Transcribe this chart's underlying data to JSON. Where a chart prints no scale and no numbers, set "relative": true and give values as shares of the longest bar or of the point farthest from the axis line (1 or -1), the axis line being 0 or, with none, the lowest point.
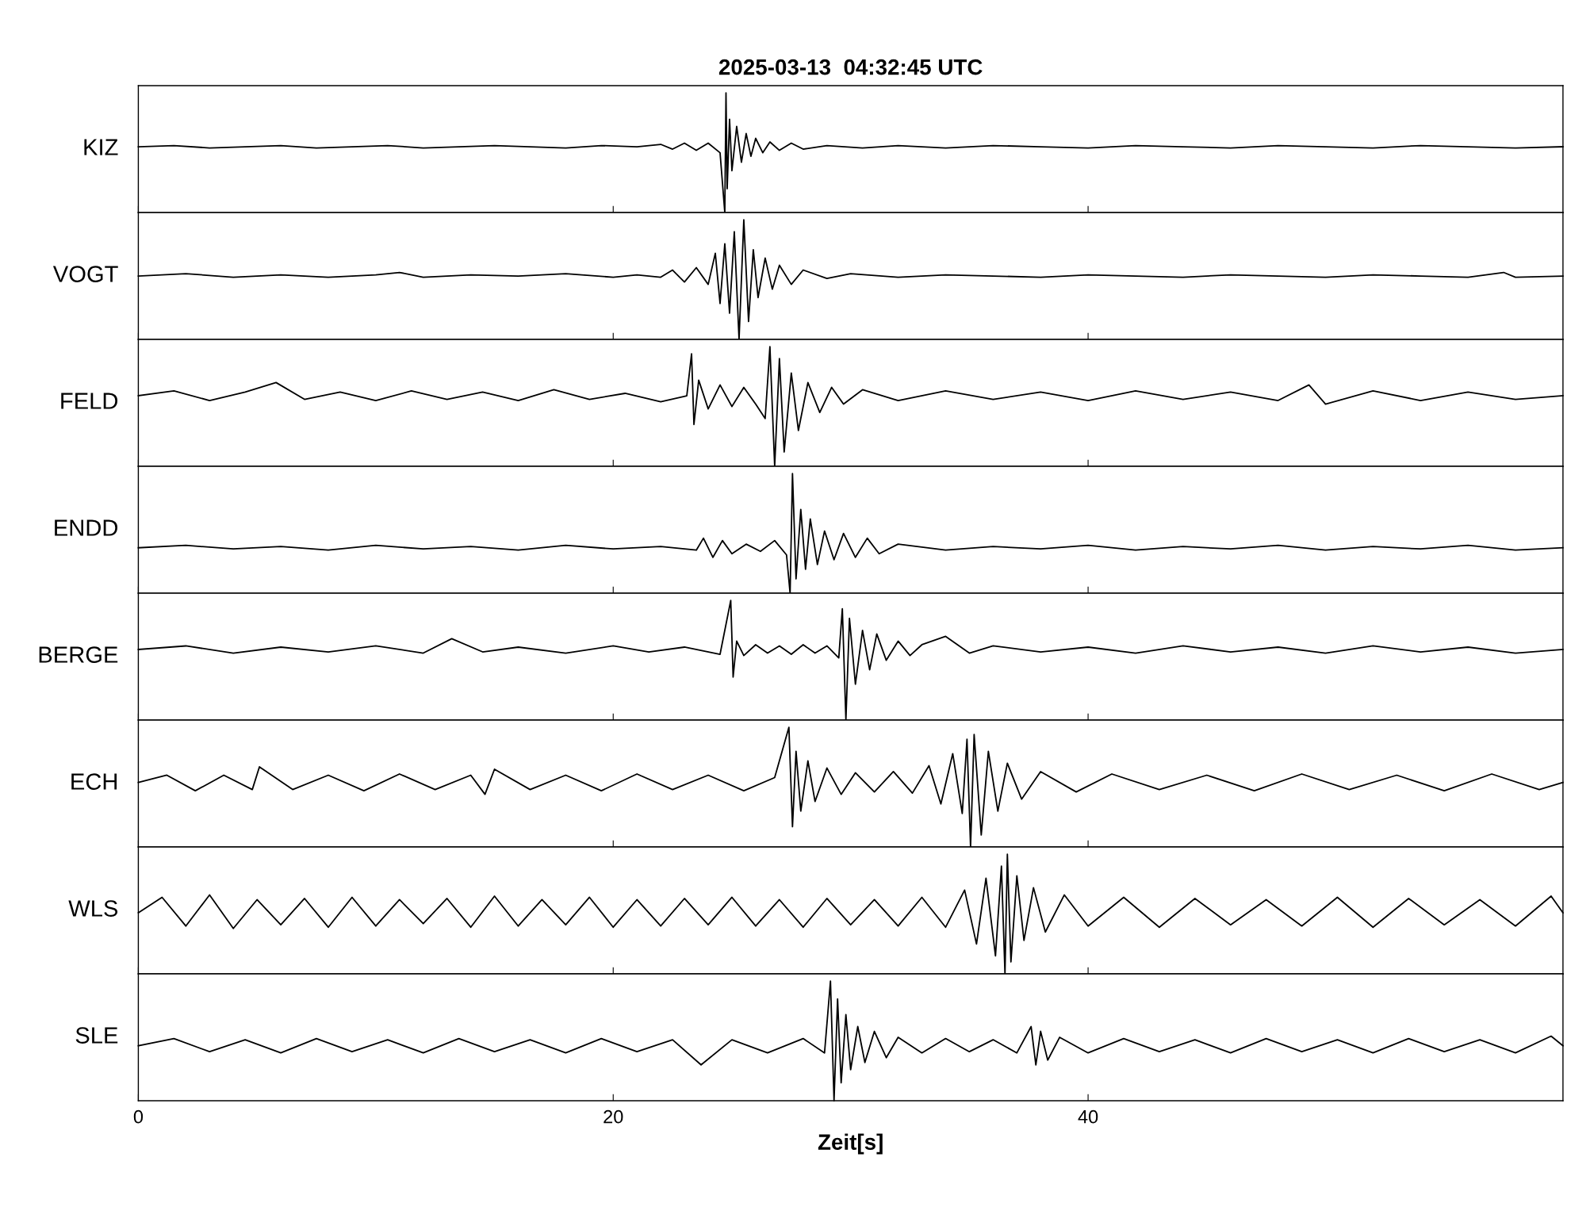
{
  "chart_data": [
    {
      "type": "line",
      "relative": true,
      "title": "2025-03-13  04:32:45 UTC",
      "ylabel": "KIZ",
      "xlim": [
        0,
        60
      ],
      "xticks": [
        0,
        20,
        40
      ],
      "tick_labels": false,
      "x": [
        0,
        1.5,
        3,
        4.5,
        6,
        7.5,
        9,
        10.5,
        12,
        13.5,
        15,
        16.5,
        18,
        19.5,
        21,
        22,
        22.5,
        23,
        23.5,
        24,
        24.5,
        24.7,
        24.75,
        24.8,
        24.9,
        25.0,
        25.2,
        25.4,
        25.6,
        25.8,
        26.0,
        26.3,
        26.6,
        27,
        27.5,
        28,
        29,
        30.5,
        32,
        34,
        36,
        38,
        40,
        42,
        44,
        46,
        48,
        50,
        52,
        54,
        56,
        58,
        60
      ],
      "series": [
        {
          "color": "#000000",
          "values": [
            0.55,
            0.56,
            0.54,
            0.55,
            0.56,
            0.54,
            0.55,
            0.56,
            0.54,
            0.55,
            0.56,
            0.55,
            0.54,
            0.56,
            0.55,
            0.57,
            0.53,
            0.58,
            0.52,
            0.58,
            0.5,
            0.0,
            1.0,
            0.2,
            0.78,
            0.35,
            0.72,
            0.42,
            0.66,
            0.47,
            0.62,
            0.5,
            0.59,
            0.52,
            0.58,
            0.53,
            0.56,
            0.54,
            0.56,
            0.54,
            0.56,
            0.55,
            0.54,
            0.56,
            0.55,
            0.54,
            0.56,
            0.55,
            0.54,
            0.56,
            0.55,
            0.54,
            0.55
          ]
        }
      ]
    },
    {
      "type": "line",
      "relative": true,
      "ylabel": "VOGT",
      "xlim": [
        0,
        60
      ],
      "xticks": [
        0,
        20,
        40
      ],
      "tick_labels": false,
      "x": [
        0,
        2,
        4,
        6,
        8,
        10,
        11,
        12,
        14,
        16,
        18,
        20,
        21,
        22,
        22.5,
        23,
        23.5,
        24,
        24.3,
        24.5,
        24.7,
        24.9,
        25.1,
        25.3,
        25.5,
        25.7,
        25.9,
        26.1,
        26.4,
        26.7,
        27,
        27.5,
        28,
        29,
        30,
        32,
        34,
        36,
        38,
        40,
        42,
        44,
        46,
        48,
        50,
        52,
        54,
        56,
        57.5,
        58,
        60
      ],
      "series": [
        {
          "color": "#000000",
          "values": [
            0.53,
            0.55,
            0.52,
            0.54,
            0.52,
            0.54,
            0.56,
            0.52,
            0.54,
            0.53,
            0.55,
            0.52,
            0.54,
            0.52,
            0.58,
            0.48,
            0.6,
            0.46,
            0.72,
            0.3,
            0.8,
            0.22,
            0.9,
            0.0,
            1.0,
            0.15,
            0.75,
            0.35,
            0.68,
            0.42,
            0.62,
            0.46,
            0.58,
            0.51,
            0.55,
            0.52,
            0.54,
            0.53,
            0.52,
            0.54,
            0.53,
            0.52,
            0.54,
            0.53,
            0.52,
            0.54,
            0.53,
            0.52,
            0.56,
            0.52,
            0.53
          ]
        }
      ]
    },
    {
      "type": "line",
      "relative": true,
      "ylabel": "FELD",
      "xlim": [
        0,
        60
      ],
      "xticks": [
        0,
        20,
        40
      ],
      "tick_labels": false,
      "x": [
        0,
        1.5,
        3,
        4.5,
        5.8,
        7,
        8.5,
        10,
        11.5,
        13,
        14.5,
        16,
        17.5,
        19,
        20.5,
        22,
        23.1,
        23.3,
        23.4,
        23.6,
        24,
        24.5,
        25,
        25.5,
        26,
        26.4,
        26.6,
        26.8,
        27,
        27.2,
        27.5,
        27.8,
        28.2,
        28.7,
        29.2,
        29.7,
        30.5,
        32,
        34,
        36,
        38,
        40,
        42,
        44,
        46,
        48,
        49.3,
        50,
        52,
        54,
        56,
        58,
        60
      ],
      "series": [
        {
          "color": "#000000",
          "values": [
            0.59,
            0.63,
            0.55,
            0.62,
            0.7,
            0.56,
            0.62,
            0.55,
            0.63,
            0.56,
            0.62,
            0.55,
            0.64,
            0.56,
            0.61,
            0.54,
            0.59,
            0.94,
            0.35,
            0.72,
            0.48,
            0.68,
            0.5,
            0.66,
            0.52,
            0.4,
            1.0,
            0.0,
            0.9,
            0.12,
            0.78,
            0.3,
            0.7,
            0.45,
            0.66,
            0.52,
            0.64,
            0.55,
            0.63,
            0.56,
            0.62,
            0.55,
            0.63,
            0.56,
            0.62,
            0.55,
            0.68,
            0.52,
            0.63,
            0.55,
            0.62,
            0.56,
            0.59
          ]
        }
      ]
    },
    {
      "type": "line",
      "relative": true,
      "ylabel": "ENDD",
      "xlim": [
        0,
        60
      ],
      "xticks": [
        0,
        20,
        40
      ],
      "tick_labels": false,
      "x": [
        0,
        2,
        4,
        6,
        8,
        10,
        12,
        14,
        16,
        18,
        20,
        22,
        23.5,
        23.8,
        24.2,
        24.6,
        25,
        25.6,
        26.2,
        26.8,
        27.3,
        27.45,
        27.55,
        27.7,
        27.9,
        28.1,
        28.3,
        28.6,
        28.9,
        29.3,
        29.7,
        30.2,
        30.7,
        31.2,
        32,
        34,
        36,
        38,
        40,
        42,
        44,
        46,
        48,
        50,
        52,
        54,
        56,
        58,
        60
      ],
      "series": [
        {
          "color": "#000000",
          "values": [
            0.38,
            0.4,
            0.37,
            0.39,
            0.36,
            0.4,
            0.37,
            0.39,
            0.36,
            0.4,
            0.37,
            0.39,
            0.36,
            0.46,
            0.3,
            0.44,
            0.33,
            0.41,
            0.35,
            0.44,
            0.32,
            0.0,
            1.0,
            0.12,
            0.7,
            0.2,
            0.62,
            0.24,
            0.52,
            0.28,
            0.5,
            0.3,
            0.46,
            0.33,
            0.41,
            0.36,
            0.39,
            0.37,
            0.4,
            0.36,
            0.39,
            0.37,
            0.4,
            0.36,
            0.39,
            0.37,
            0.4,
            0.36,
            0.38
          ]
        }
      ]
    },
    {
      "type": "line",
      "relative": true,
      "ylabel": "BERGE",
      "xlim": [
        0,
        60
      ],
      "xticks": [
        0,
        20,
        40
      ],
      "tick_labels": false,
      "x": [
        0,
        2,
        4,
        6,
        8,
        10,
        12,
        13.2,
        14.5,
        16,
        18,
        20,
        21.5,
        23,
        24.5,
        24.95,
        25.05,
        25.2,
        25.5,
        26,
        26.5,
        27,
        27.5,
        28,
        28.5,
        29,
        29.5,
        29.65,
        29.8,
        29.95,
        30.2,
        30.5,
        30.8,
        31.1,
        31.5,
        32,
        32.5,
        33,
        34,
        35,
        36,
        38,
        40,
        42,
        44,
        46,
        48,
        50,
        52,
        54,
        56,
        58,
        60
      ],
      "series": [
        {
          "color": "#000000",
          "values": [
            0.59,
            0.62,
            0.56,
            0.61,
            0.57,
            0.62,
            0.56,
            0.68,
            0.57,
            0.61,
            0.56,
            0.62,
            0.57,
            0.61,
            0.55,
            1.0,
            0.36,
            0.66,
            0.54,
            0.63,
            0.56,
            0.62,
            0.55,
            0.63,
            0.56,
            0.62,
            0.52,
            0.93,
            0.0,
            0.85,
            0.3,
            0.75,
            0.42,
            0.72,
            0.5,
            0.66,
            0.54,
            0.63,
            0.7,
            0.56,
            0.62,
            0.57,
            0.61,
            0.56,
            0.62,
            0.57,
            0.61,
            0.56,
            0.62,
            0.57,
            0.61,
            0.56,
            0.59
          ]
        }
      ]
    },
    {
      "type": "line",
      "relative": true,
      "ylabel": "ECH",
      "xlim": [
        0,
        60
      ],
      "xticks": [
        0,
        20,
        40
      ],
      "tick_labels": false,
      "x": [
        0,
        1.2,
        2.4,
        3.6,
        4.8,
        5.1,
        6.5,
        8,
        9.5,
        11,
        12.5,
        14,
        14.6,
        15,
        16.5,
        18,
        19.5,
        21,
        22.5,
        24,
        25.5,
        26.8,
        27.4,
        27.55,
        27.7,
        27.9,
        28.2,
        28.5,
        29,
        29.6,
        30.2,
        31,
        31.8,
        32.6,
        33.3,
        33.8,
        34.3,
        34.7,
        34.9,
        35.05,
        35.2,
        35.5,
        35.8,
        36.2,
        36.6,
        37.2,
        38,
        39.5,
        41,
        43,
        45,
        47,
        49,
        51,
        53,
        55,
        57,
        59,
        60
      ],
      "series": [
        {
          "color": "#000000",
          "values": [
            0.54,
            0.6,
            0.47,
            0.6,
            0.48,
            0.67,
            0.48,
            0.6,
            0.47,
            0.61,
            0.48,
            0.6,
            0.44,
            0.65,
            0.48,
            0.6,
            0.47,
            0.61,
            0.48,
            0.6,
            0.47,
            0.58,
            1.0,
            0.17,
            0.8,
            0.3,
            0.72,
            0.38,
            0.66,
            0.44,
            0.62,
            0.46,
            0.63,
            0.45,
            0.68,
            0.36,
            0.78,
            0.28,
            0.9,
            0.0,
            0.94,
            0.1,
            0.8,
            0.3,
            0.7,
            0.4,
            0.63,
            0.46,
            0.61,
            0.48,
            0.6,
            0.47,
            0.61,
            0.48,
            0.6,
            0.47,
            0.61,
            0.48,
            0.54
          ]
        }
      ]
    },
    {
      "type": "line",
      "relative": true,
      "ylabel": "WLS",
      "xlim": [
        0,
        60
      ],
      "xticks": [
        0,
        20,
        40
      ],
      "tick_labels": false,
      "x": [
        0,
        1,
        2,
        3,
        4,
        5,
        6,
        7,
        8,
        9,
        10,
        11,
        12,
        13,
        14,
        15,
        16,
        17,
        18,
        19,
        20,
        21,
        22,
        23,
        24,
        25,
        26,
        27,
        28,
        29,
        30,
        31,
        32,
        33,
        34,
        34.8,
        35.3,
        35.7,
        36.1,
        36.35,
        36.5,
        36.6,
        36.75,
        37,
        37.3,
        37.7,
        38.2,
        39,
        40,
        41.5,
        43,
        44.5,
        46,
        47.5,
        49,
        50.5,
        52,
        53.5,
        55,
        56.5,
        58,
        59.5,
        60
      ],
      "series": [
        {
          "color": "#000000",
          "values": [
            0.51,
            0.64,
            0.4,
            0.66,
            0.38,
            0.62,
            0.41,
            0.63,
            0.39,
            0.64,
            0.4,
            0.62,
            0.42,
            0.63,
            0.39,
            0.65,
            0.4,
            0.62,
            0.41,
            0.64,
            0.39,
            0.62,
            0.4,
            0.63,
            0.41,
            0.64,
            0.4,
            0.62,
            0.39,
            0.63,
            0.41,
            0.62,
            0.4,
            0.64,
            0.39,
            0.7,
            0.25,
            0.8,
            0.15,
            0.9,
            0.0,
            1.0,
            0.1,
            0.82,
            0.28,
            0.72,
            0.35,
            0.66,
            0.4,
            0.64,
            0.39,
            0.63,
            0.41,
            0.62,
            0.4,
            0.64,
            0.39,
            0.63,
            0.41,
            0.62,
            0.4,
            0.65,
            0.51
          ]
        }
      ]
    },
    {
      "type": "line",
      "relative": true,
      "ylabel": "SLE",
      "xlabel": "Zeit[s]",
      "xlim": [
        0,
        60
      ],
      "xticks": [
        0,
        20,
        40
      ],
      "tick_labels": "x",
      "x": [
        0,
        1.5,
        3,
        4.5,
        6,
        7.5,
        9,
        10.5,
        12,
        13.5,
        15,
        16.5,
        18,
        19.5,
        21,
        22.5,
        23.7,
        25,
        26.5,
        28,
        28.9,
        29.15,
        29.3,
        29.45,
        29.6,
        29.8,
        30,
        30.3,
        30.6,
        31,
        31.5,
        32,
        33,
        34,
        35,
        36,
        37,
        37.6,
        37.8,
        38,
        38.3,
        38.8,
        40,
        41.5,
        43,
        44.5,
        46,
        47.5,
        49,
        50.5,
        52,
        53.5,
        55,
        56.5,
        58,
        59.5,
        60
      ],
      "series": [
        {
          "color": "#000000",
          "values": [
            0.46,
            0.52,
            0.41,
            0.51,
            0.4,
            0.52,
            0.41,
            0.51,
            0.4,
            0.52,
            0.41,
            0.51,
            0.4,
            0.52,
            0.41,
            0.51,
            0.3,
            0.51,
            0.4,
            0.52,
            0.4,
            1.0,
            0.0,
            0.85,
            0.15,
            0.72,
            0.26,
            0.62,
            0.32,
            0.58,
            0.36,
            0.53,
            0.4,
            0.52,
            0.41,
            0.51,
            0.4,
            0.62,
            0.3,
            0.58,
            0.34,
            0.53,
            0.4,
            0.52,
            0.41,
            0.51,
            0.4,
            0.52,
            0.41,
            0.51,
            0.4,
            0.52,
            0.41,
            0.51,
            0.4,
            0.54,
            0.46
          ]
        }
      ]
    }
  ]
}
